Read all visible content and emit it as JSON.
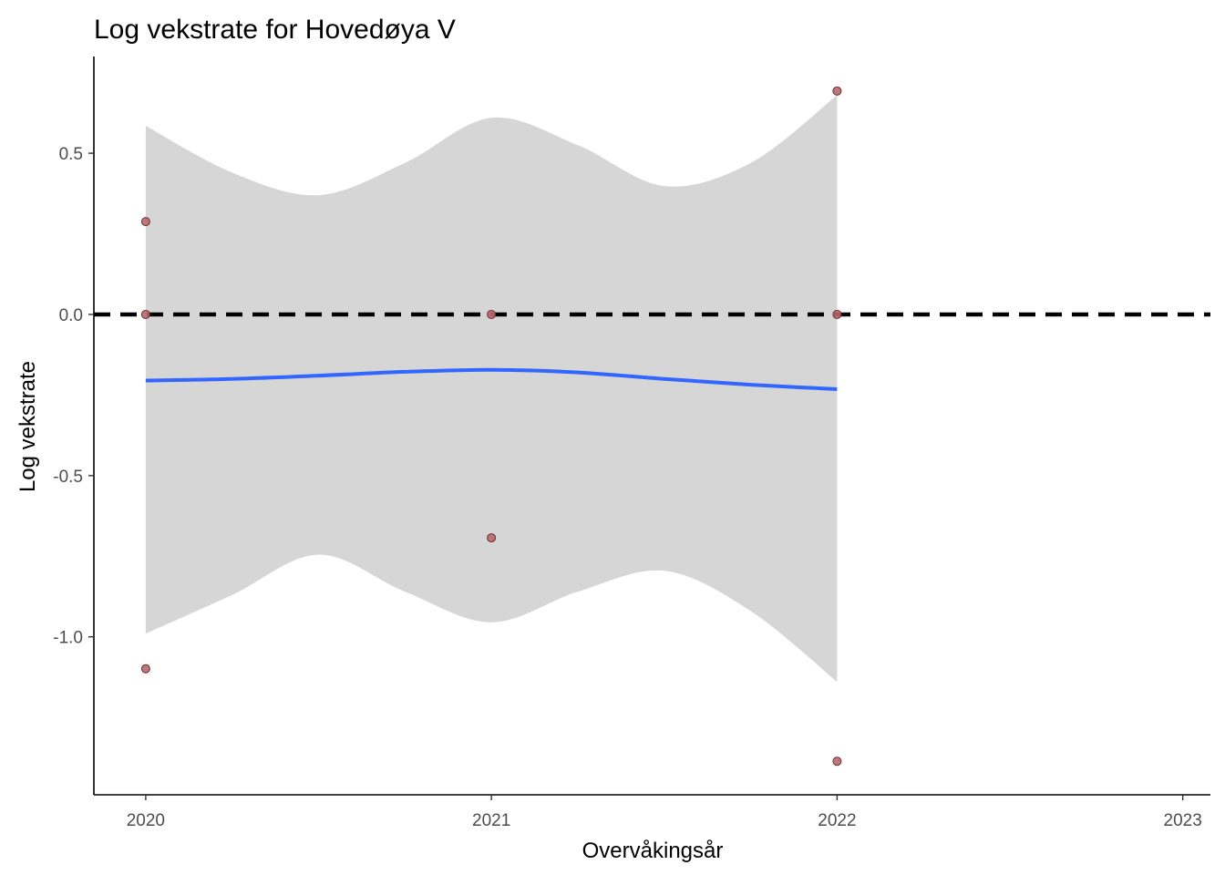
{
  "chart_data": {
    "type": "scatter",
    "title": "Log vekstrate for Hovedøya V",
    "xlabel": "Overvåkingsår",
    "ylabel": "Log vekstrate",
    "xlim": [
      2019.85,
      2023.08
    ],
    "ylim": [
      -1.49,
      0.8
    ],
    "x_ticks": [
      2020,
      2021,
      2022,
      2023
    ],
    "x_tick_labels": [
      "2020",
      "2021",
      "2022",
      "2023"
    ],
    "y_ticks": [
      0.5,
      0.0,
      -0.5,
      -1.0
    ],
    "y_tick_labels": [
      "0.5",
      "0.0",
      "-0.5",
      "-1.0"
    ],
    "grid": false,
    "reference_line": {
      "y": 0,
      "style": "dashed",
      "color": "#000000"
    },
    "points": {
      "color": "#b5696d",
      "values": [
        {
          "x": 2020,
          "y": 0.288
        },
        {
          "x": 2020,
          "y": 0.0
        },
        {
          "x": 2020,
          "y": -1.099
        },
        {
          "x": 2021,
          "y": 0.0
        },
        {
          "x": 2021,
          "y": -0.693
        },
        {
          "x": 2022,
          "y": 0.693
        },
        {
          "x": 2022,
          "y": 0.0
        },
        {
          "x": 2022,
          "y": -1.386
        }
      ]
    },
    "smooth": {
      "color": "#3366ff",
      "ribbon_color": "#d6d6d6",
      "x": [
        2020.0,
        2020.25,
        2020.5,
        2020.75,
        2021.0,
        2021.25,
        2021.5,
        2021.75,
        2022.0
      ],
      "y": [
        -0.205,
        -0.2,
        -0.19,
        -0.178,
        -0.172,
        -0.18,
        -0.2,
        -0.218,
        -0.232
      ],
      "upper": [
        0.585,
        0.44,
        0.37,
        0.47,
        0.61,
        0.525,
        0.398,
        0.47,
        0.68
      ],
      "lower": [
        -0.99,
        -0.87,
        -0.745,
        -0.86,
        -0.955,
        -0.86,
        -0.795,
        -0.92,
        -1.14
      ]
    }
  }
}
